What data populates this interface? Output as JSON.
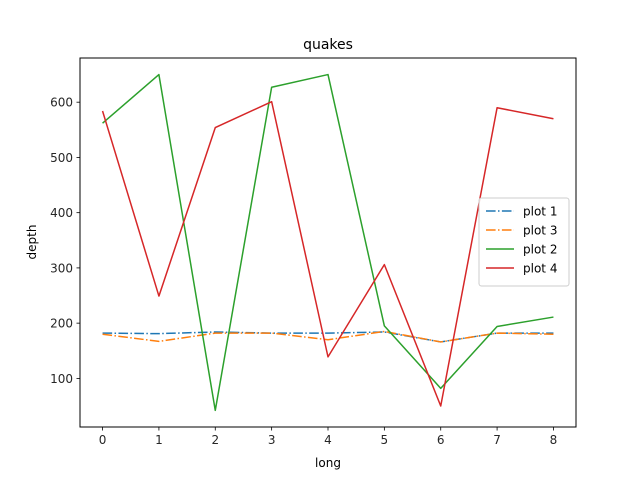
{
  "chart_data": {
    "type": "line",
    "title": "quakes",
    "xlabel": "long",
    "ylabel": "depth",
    "x": [
      0,
      1,
      2,
      3,
      4,
      5,
      6,
      7,
      8
    ],
    "xlim": [
      -0.4,
      8.4
    ],
    "ylim": [
      12,
      680
    ],
    "xticks": [
      0,
      1,
      2,
      3,
      4,
      5,
      6,
      7,
      8
    ],
    "yticks": [
      100,
      200,
      300,
      400,
      500,
      600
    ],
    "grid": false,
    "legend_position": "center-right",
    "series": [
      {
        "name": "plot 1",
        "color": "#1f77b4",
        "style": "dashdot",
        "values": [
          182,
          181,
          184,
          182,
          182,
          184,
          166,
          182,
          182
        ]
      },
      {
        "name": "plot 3",
        "color": "#ff7f0e",
        "style": "dashdot",
        "values": [
          180,
          167,
          182,
          182,
          170,
          185,
          166,
          182,
          180
        ]
      },
      {
        "name": "plot 2",
        "color": "#2ca02c",
        "style": "solid",
        "values": [
          562,
          650,
          42,
          627,
          650,
          195,
          82,
          194,
          211
        ]
      },
      {
        "name": "plot 4",
        "color": "#d62728",
        "style": "solid",
        "values": [
          584,
          249,
          554,
          601,
          139,
          306,
          50,
          590,
          570
        ]
      }
    ],
    "legend_order": [
      "plot 1",
      "plot 3",
      "plot 2",
      "plot 4"
    ]
  }
}
